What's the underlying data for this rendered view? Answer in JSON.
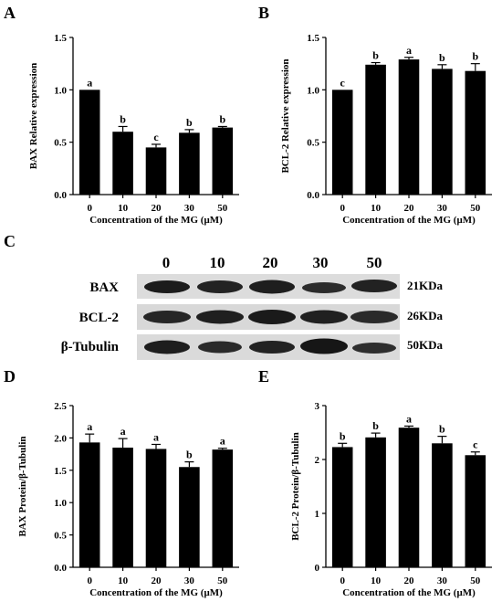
{
  "panels": {
    "A": {
      "letter": "A"
    },
    "B": {
      "letter": "B"
    },
    "C": {
      "letter": "C"
    },
    "D": {
      "letter": "D"
    },
    "E": {
      "letter": "E"
    }
  },
  "blot": {
    "lane_labels": [
      "0",
      "10",
      "20",
      "30",
      "50"
    ],
    "rows": [
      {
        "protein": "BAX",
        "size": "21KDa"
      },
      {
        "protein": "BCL-2",
        "size": "26KDa"
      },
      {
        "protein": "β-Tubulin",
        "size": "50KDa"
      }
    ]
  },
  "chart_data": [
    {
      "panel": "A",
      "type": "bar",
      "categories": [
        "0",
        "10",
        "20",
        "30",
        "50"
      ],
      "values": [
        1.0,
        0.6,
        0.45,
        0.59,
        0.64
      ],
      "errors": [
        0.0,
        0.05,
        0.03,
        0.03,
        0.01
      ],
      "letters": [
        "a",
        "b",
        "c",
        "b",
        "b"
      ],
      "xlabel": "Concentration of the MG (μM)",
      "ylabel": "BAX Relative expression",
      "ylim": [
        0,
        1.5
      ],
      "yticks": [
        "0.0",
        "0.5",
        "1.0",
        "1.5"
      ],
      "grid": false
    },
    {
      "panel": "B",
      "type": "bar",
      "categories": [
        "0",
        "10",
        "20",
        "30",
        "50"
      ],
      "values": [
        1.0,
        1.24,
        1.29,
        1.2,
        1.18
      ],
      "errors": [
        0.0,
        0.02,
        0.02,
        0.04,
        0.07
      ],
      "letters": [
        "c",
        "b",
        "a",
        "b",
        "b"
      ],
      "xlabel": "Concentration of the MG (μM)",
      "ylabel": "BCL-2 Relative expression",
      "ylim": [
        0,
        1.5
      ],
      "yticks": [
        "0.0",
        "0.5",
        "1.0",
        "1.5"
      ],
      "grid": false
    },
    {
      "panel": "D",
      "type": "bar",
      "categories": [
        "0",
        "10",
        "20",
        "30",
        "50"
      ],
      "values": [
        1.93,
        1.85,
        1.83,
        1.55,
        1.82
      ],
      "errors": [
        0.13,
        0.14,
        0.07,
        0.08,
        0.02
      ],
      "letters": [
        "a",
        "a",
        "a",
        "b",
        "a"
      ],
      "xlabel": "Concentration of the MG (μM)",
      "ylabel": "BAX Protein/β-Tubulin",
      "ylim": [
        0,
        2.5
      ],
      "yticks": [
        "0.0",
        "0.5",
        "1.0",
        "1.5",
        "2.0",
        "2.5"
      ],
      "grid": false
    },
    {
      "panel": "E",
      "type": "bar",
      "categories": [
        "0",
        "10",
        "20",
        "30",
        "50"
      ],
      "values": [
        2.23,
        2.41,
        2.59,
        2.3,
        2.08
      ],
      "errors": [
        0.07,
        0.08,
        0.03,
        0.13,
        0.06
      ],
      "letters": [
        "b",
        "b",
        "a",
        "b",
        "c"
      ],
      "xlabel": "Concentration of the MG (μM)",
      "ylabel": "BCL-2 Protein/β-Tubulin",
      "ylim": [
        0,
        3
      ],
      "yticks": [
        "0",
        "1",
        "2",
        "3"
      ],
      "grid": false
    }
  ]
}
